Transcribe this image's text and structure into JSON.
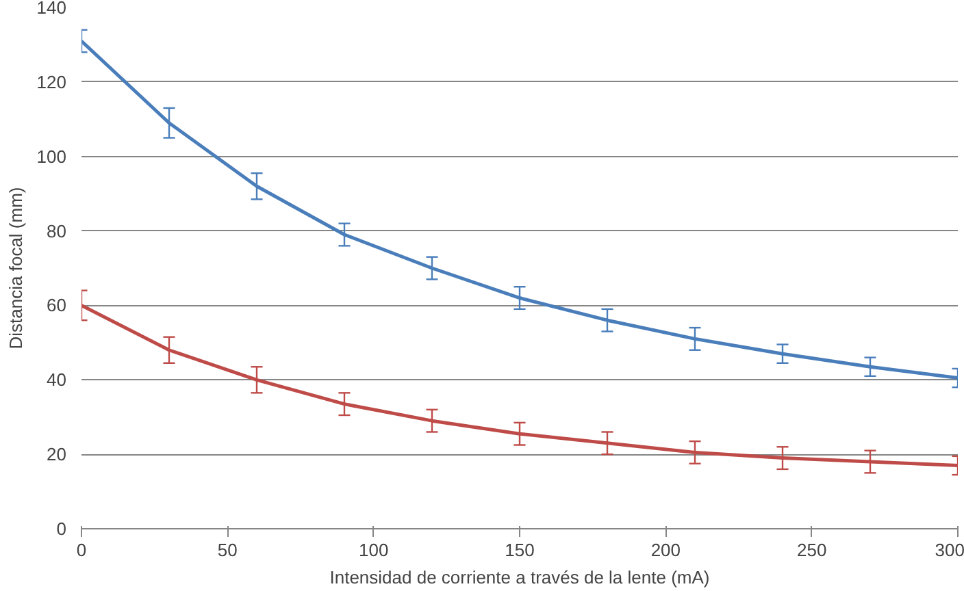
{
  "chart_data": {
    "type": "line",
    "xlabel": "Intensidad de corriente a través de la lente (mA)",
    "ylabel": "Distancia focal (mm)",
    "x": [
      0,
      30,
      60,
      90,
      120,
      150,
      180,
      210,
      240,
      270,
      300
    ],
    "series": [
      {
        "color": "#4a7ebb",
        "values": [
          131,
          109,
          92,
          79,
          70,
          62,
          56,
          51,
          47,
          43.5,
          40.5
        ],
        "errors": [
          3,
          4,
          3.5,
          3,
          3,
          3,
          3,
          3,
          2.5,
          2.5,
          2.5
        ]
      },
      {
        "color": "#be4b48",
        "values": [
          60,
          48,
          40,
          33.5,
          29,
          25.5,
          23,
          20.5,
          19,
          18,
          17
        ],
        "errors": [
          4,
          3.5,
          3.5,
          3,
          3,
          3,
          3,
          3,
          3,
          3,
          2.5
        ]
      }
    ],
    "xlim": [
      0,
      300
    ],
    "ylim": [
      0,
      140
    ],
    "xticks": [
      0,
      50,
      100,
      150,
      200,
      250,
      300
    ],
    "yticks": [
      0,
      20,
      40,
      60,
      80,
      100,
      120,
      140
    ],
    "grid": "y",
    "marker": "none",
    "line_style": "solid"
  }
}
